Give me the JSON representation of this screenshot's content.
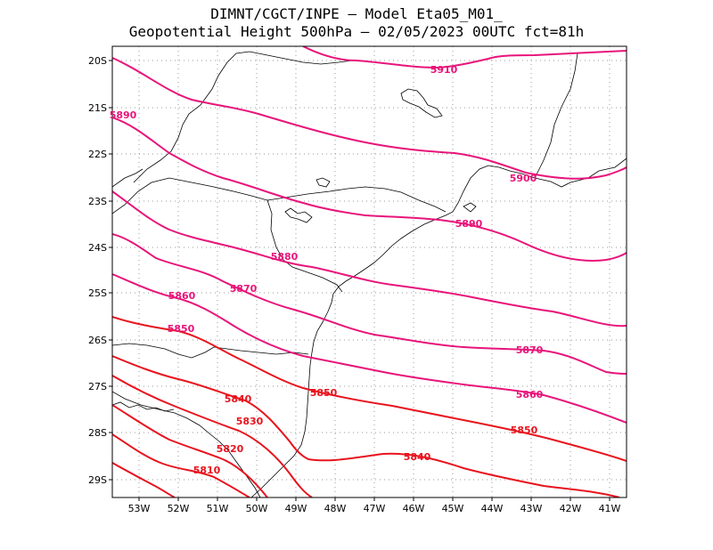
{
  "title": {
    "line1": "DIMNT/CGCT/INPE –  Model Eta05_M01_",
    "line2": "Geopotential Height 500hPa –  02/05/2023 00UTC fct=81h"
  },
  "colors": {
    "contour_high": "#e8147a",
    "contour_low": "#e8141e",
    "coastline": "#000000",
    "grid": "#9a9a9a"
  },
  "axes": {
    "lat_labels": [
      "20S",
      "21S",
      "22S",
      "23S",
      "24S",
      "25S",
      "26S",
      "27S",
      "28S",
      "29S"
    ],
    "lon_labels": [
      "53W",
      "52W",
      "51W",
      "50W",
      "49W",
      "48W",
      "47W",
      "46W",
      "45W",
      "44W",
      "43W",
      "42W",
      "41W"
    ]
  },
  "contour_labels": [
    "5910",
    "5900",
    "5890",
    "5890",
    "5880",
    "5870",
    "5870",
    "5860",
    "5860",
    "5850",
    "5850",
    "5850",
    "5840",
    "5840",
    "5830",
    "5820",
    "5810"
  ]
}
